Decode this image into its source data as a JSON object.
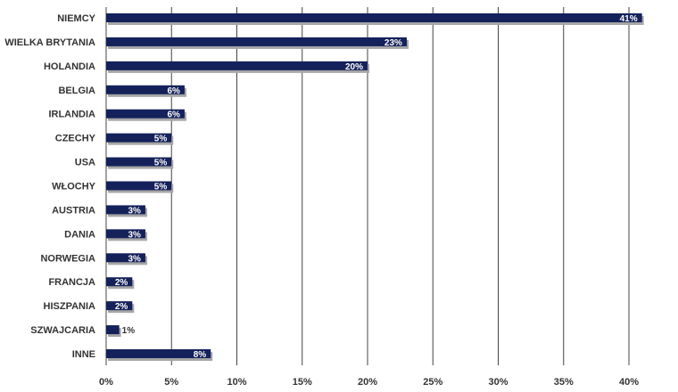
{
  "chart_data": {
    "type": "bar",
    "orientation": "horizontal",
    "categories": [
      "NIEMCY",
      "WIELKA BRYTANIA",
      "HOLANDIA",
      "BELGIA",
      "IRLANDIA",
      "CZECHY",
      "USA",
      "WŁOCHY",
      "AUSTRIA",
      "DANIA",
      "NORWEGIA",
      "FRANCJA",
      "HISZPANIA",
      "SZWAJCARIA",
      "INNE"
    ],
    "values": [
      41,
      23,
      20,
      6,
      6,
      5,
      5,
      5,
      3,
      3,
      3,
      2,
      2,
      1,
      8
    ],
    "data_labels": [
      "41%",
      "23%",
      "20%",
      "6%",
      "6%",
      "5%",
      "5%",
      "5%",
      "3%",
      "3%",
      "3%",
      "2%",
      "2%",
      "1%",
      "8%"
    ],
    "x_ticks": [
      "0%",
      "5%",
      "10%",
      "15%",
      "20%",
      "25%",
      "30%",
      "35%",
      "40%"
    ],
    "xlim": [
      0,
      41.5
    ],
    "grid": true,
    "legend": "none",
    "colors": {
      "bar": "#14215a",
      "shadow": "#a6a6a6",
      "grid": "#444444",
      "label_inside": "#ffffff",
      "label_outside": "#333333"
    }
  }
}
